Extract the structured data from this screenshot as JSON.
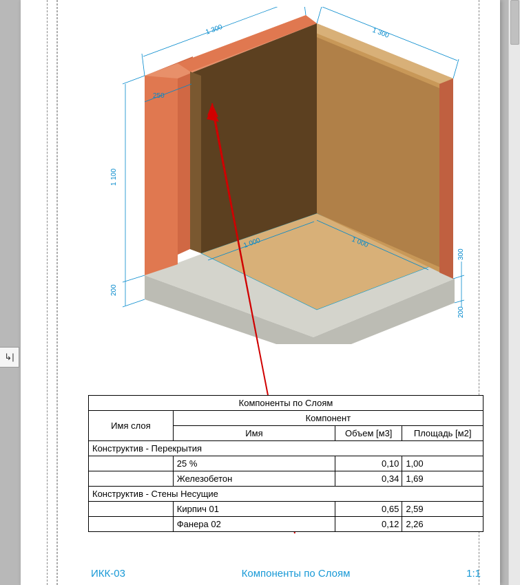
{
  "side_tab": "↳|",
  "dims": {
    "top_left": "1 300",
    "top_right": "1 300",
    "label_250": "250",
    "height_1100": "1 100",
    "height_200a": "200",
    "floor_1000a": "1 000",
    "floor_1000b": "1 000",
    "right_300": "300",
    "right_200": "200"
  },
  "colors": {
    "brick": "#e07850",
    "brick_dark": "#c06040",
    "wood": "#c89858",
    "wood_dark": "#7a5830",
    "wood_dark2": "#5c4020",
    "concrete": "#d4d4cc",
    "concrete_dark": "#bcbcb4",
    "floor_pan": "#d8b078",
    "dim": "#0088cc",
    "arrow": "#d00000"
  },
  "table": {
    "title": "Компоненты по Слоям",
    "layer_header": "Имя слоя",
    "component_header": "Компонент",
    "columns": [
      "Имя",
      "Объем [м3]",
      "Площадь [м2]"
    ],
    "groups": [
      {
        "name": "Конструктив - Перекрытия",
        "rows": [
          {
            "name": "25 %",
            "vol": "0,10",
            "area": "1,00"
          },
          {
            "name": "Железобетон",
            "vol": "0,34",
            "area": "1,69"
          }
        ]
      },
      {
        "name": "Конструктив - Стены Несущие",
        "rows": [
          {
            "name": "Кирпич 01",
            "vol": "0,65",
            "area": "2,59"
          },
          {
            "name": "Фанера 02",
            "vol": "0,12",
            "area": "2,26"
          }
        ]
      }
    ]
  },
  "footer": {
    "code": "ИКК-03",
    "title": "Компоненты по Слоям",
    "scale": "1:1"
  }
}
